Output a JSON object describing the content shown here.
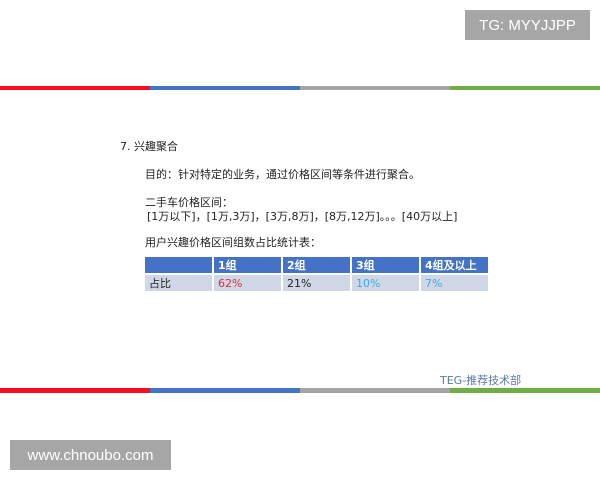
{
  "watermark_top": "TG: MYYJJPP",
  "watermark_bottom": "www.chnoubo.com",
  "colors": {
    "red": "#ff0a1f",
    "blue": "#4472c4",
    "gray": "#a5a5a5",
    "green": "#70ad47"
  },
  "slide": {
    "title": "7. 兴趣聚合",
    "purpose": "目的：针对特定的业务，通过价格区间等条件进行聚合。",
    "range_label": "二手车价格区间：",
    "ranges": "[1万以下]，[1万,3万]，[3万,8万]，[8万,12万]。。。[40万以上]",
    "table_caption": "用户兴趣价格区间组数占比统计表：",
    "table": {
      "headers": [
        "",
        "1组",
        "2组",
        "3组",
        "4组及以上"
      ],
      "row_label": "占比",
      "values": [
        "62%",
        "21%",
        "10%",
        "7%"
      ],
      "value_colors": [
        "#e8283c",
        "#222222",
        "#3fa9e0",
        "#3fa9e0"
      ]
    },
    "footer": "TEG-推荐技术部"
  }
}
